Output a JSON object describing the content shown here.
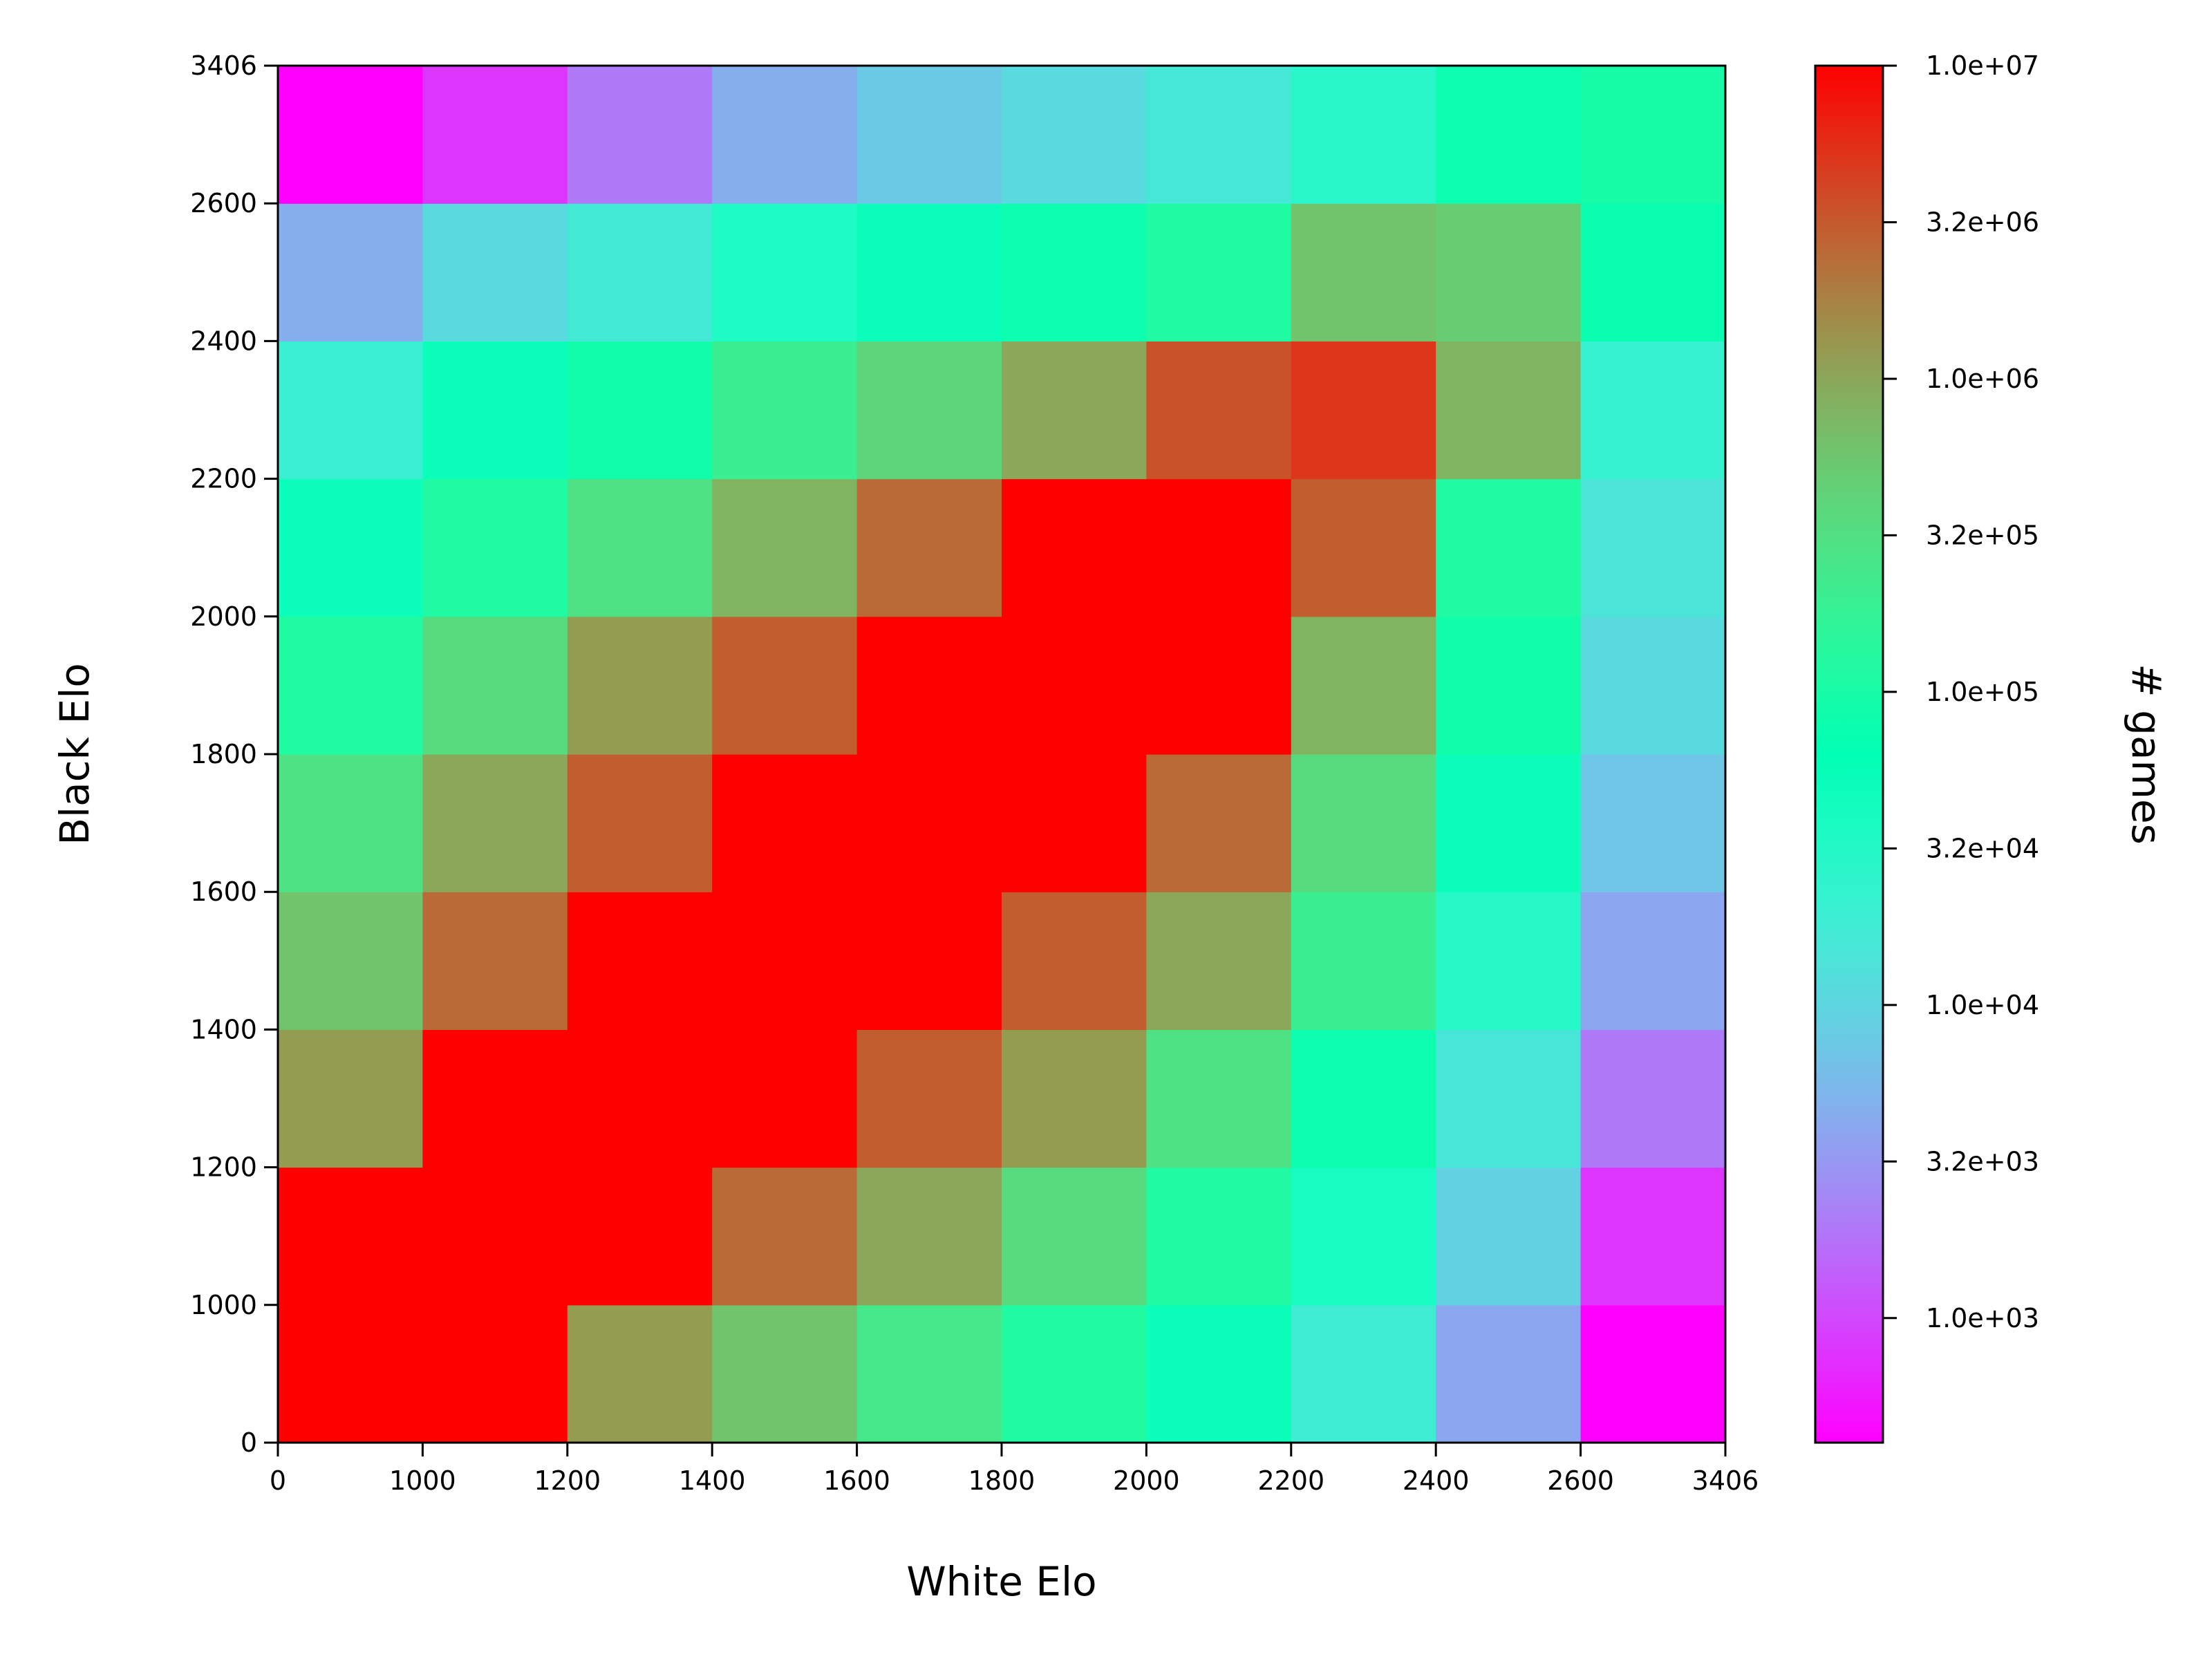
{
  "chart_data": {
    "type": "heatmap",
    "xlabel": "White Elo",
    "ylabel": "Black Elo",
    "x_bins": [
      "0",
      "1000",
      "1200",
      "1400",
      "1600",
      "1800",
      "2000",
      "2200",
      "2400",
      "2600",
      "3406"
    ],
    "y_bins": [
      "0",
      "1000",
      "1200",
      "1400",
      "1600",
      "1800",
      "2000",
      "2200",
      "2400",
      "2600",
      "3406"
    ],
    "z_scale": "log",
    "z_range": [
      400,
      10000000
    ],
    "colormap": "rainbow",
    "colorbar": {
      "label": "# games",
      "ticks": [
        {
          "value": 1000,
          "label": "1.0e+03"
        },
        {
          "value": 3162,
          "label": "3.2e+03"
        },
        {
          "value": 10000,
          "label": "1.0e+04"
        },
        {
          "value": 31623,
          "label": "3.2e+04"
        },
        {
          "value": 100000,
          "label": "1.0e+05"
        },
        {
          "value": 316228,
          "label": "3.2e+05"
        },
        {
          "value": 1000000,
          "label": "1.0e+06"
        },
        {
          "value": 3162278,
          "label": "3.2e+06"
        },
        {
          "value": 10000000,
          "label": "1.0e+07"
        }
      ]
    },
    "rows_note": "rows ordered from Black Elo 0-1000 (bottom) to 2600-3406 (top); columns White Elo 0-1000 to 2600-3406",
    "values": [
      [
        10000000,
        10000000,
        1200000,
        600000,
        250000,
        120000,
        50000,
        18000,
        4000,
        400
      ],
      [
        10000000,
        10000000,
        10000000,
        2500000,
        1000000,
        350000,
        120000,
        40000,
        9000,
        800
      ],
      [
        1200000,
        10000000,
        10000000,
        10000000,
        3000000,
        1200000,
        300000,
        80000,
        15000,
        2000
      ],
      [
        600000,
        2500000,
        10000000,
        10000000,
        10000000,
        3000000,
        1000000,
        200000,
        30000,
        4000
      ],
      [
        300000,
        1000000,
        3000000,
        10000000,
        10000000,
        10000000,
        2500000,
        350000,
        50000,
        7000
      ],
      [
        120000,
        350000,
        1200000,
        3000000,
        10000000,
        10000000,
        10000000,
        800000,
        90000,
        11000
      ],
      [
        50000,
        120000,
        300000,
        800000,
        2500000,
        10000000,
        10000000,
        3000000,
        120000,
        14000
      ],
      [
        20000,
        50000,
        90000,
        200000,
        400000,
        1000000,
        3500000,
        5000000,
        800000,
        22000
      ],
      [
        4500,
        11000,
        17000,
        35000,
        50000,
        80000,
        120000,
        600000,
        500000,
        75000
      ],
      [
        400,
        800,
        2000,
        4500,
        7500,
        11000,
        16000,
        28000,
        80000,
        100000
      ]
    ]
  }
}
